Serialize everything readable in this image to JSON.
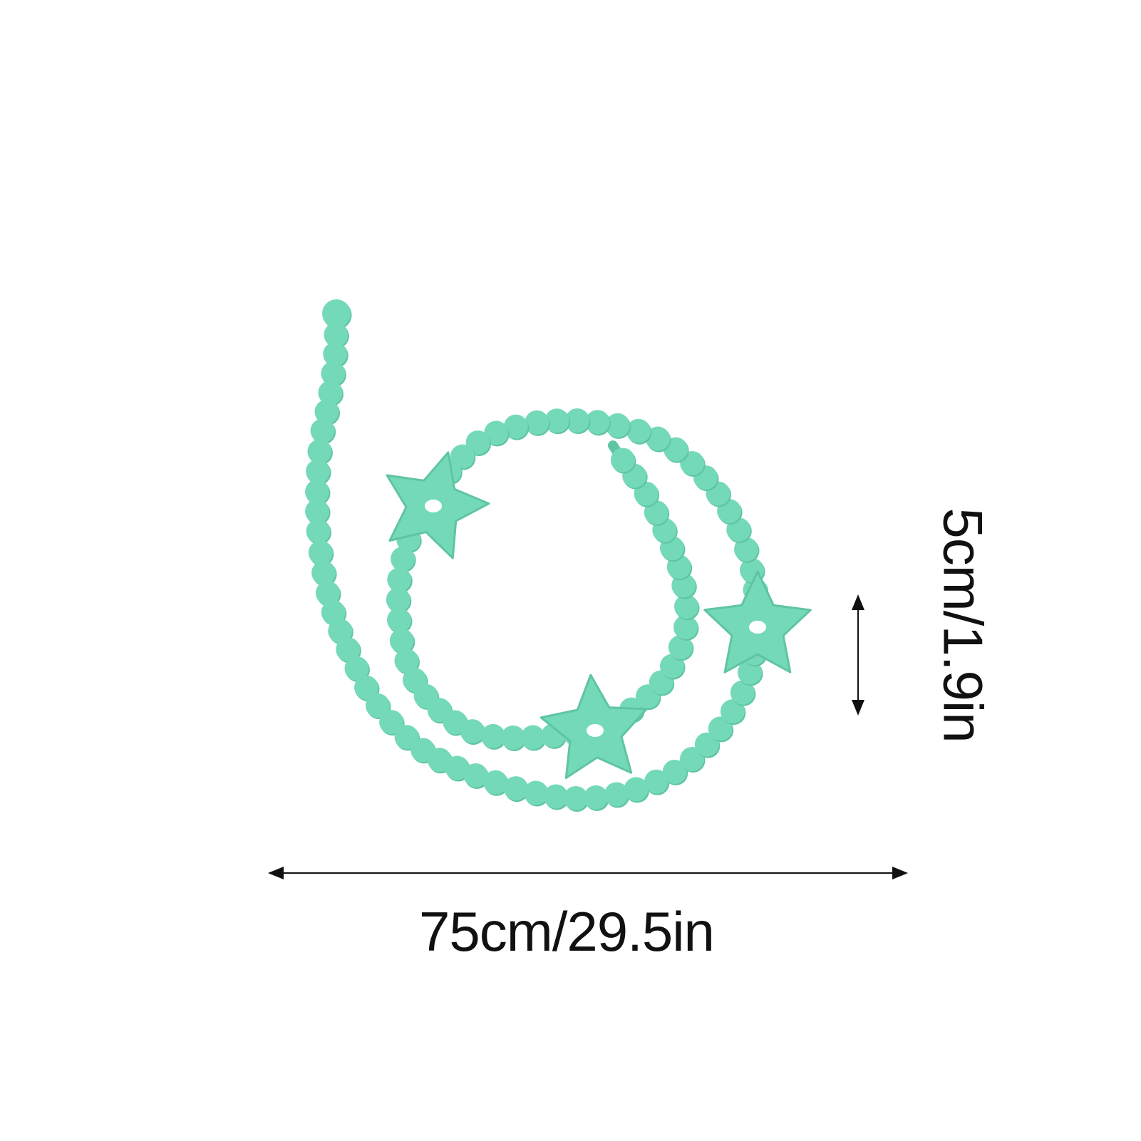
{
  "product": {
    "name": "",
    "bead_color": "#74d9b9",
    "bead_shadow": "#5fc4a4",
    "hole_color": "#ffffff"
  },
  "dimensions": {
    "length_label": "75cm/29.5in",
    "width_label": "5cm/1.9in",
    "arrow_color": "#111111"
  }
}
